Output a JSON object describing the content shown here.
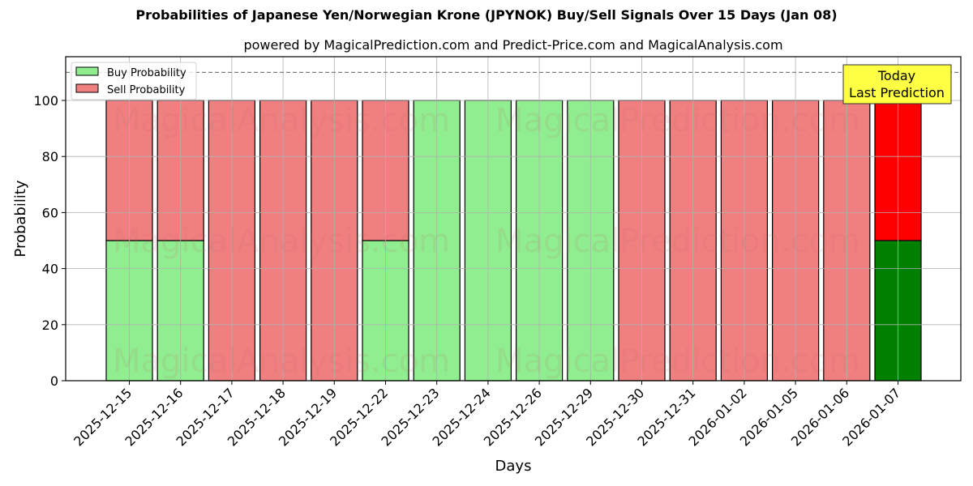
{
  "title": "Probabilities of Japanese Yen/Norwegian Krone (JPYNOK) Buy/Sell Signals Over 15 Days (Jan 08)",
  "subtitle": "powered by MagicalPrediction.com and Predict-Price.com and MagicalAnalysis.com",
  "colors": {
    "buy": "#90ee90",
    "sell": "#f08080",
    "buy_today": "#008000",
    "sell_today": "#ff0000",
    "annotation_bg": "#ffff44",
    "grid": "#b0b0b0",
    "reference_line": "#808080"
  },
  "annotation": {
    "line1": "Today",
    "line2": "Last Prediction"
  },
  "watermarks": [
    "MagicalAnalysis.com",
    "MagicalPrediction.com"
  ],
  "chart_data": {
    "type": "bar",
    "stacked": true,
    "title": "Probabilities of Japanese Yen/Norwegian Krone (JPYNOK) Buy/Sell Signals Over 15 Days (Jan 08)",
    "subtitle": "powered by MagicalPrediction.com and Predict-Price.com and MagicalAnalysis.com",
    "xlabel": "Days",
    "ylabel": "Probability",
    "ylim": [
      0,
      115
    ],
    "yticks": [
      0,
      20,
      40,
      60,
      80,
      100
    ],
    "grid": true,
    "legend_position": "upper left",
    "reference_line_y": 110,
    "categories": [
      "2025-12-15",
      "2025-12-16",
      "2025-12-17",
      "2025-12-18",
      "2025-12-19",
      "2025-12-22",
      "2025-12-23",
      "2025-12-24",
      "2025-12-26",
      "2025-12-29",
      "2025-12-30",
      "2025-12-31",
      "2026-01-02",
      "2026-01-05",
      "2026-01-06",
      "2026-01-07"
    ],
    "series": [
      {
        "name": "Buy Probability",
        "values": [
          50,
          50,
          0,
          0,
          0,
          50,
          100,
          100,
          100,
          100,
          0,
          0,
          0,
          0,
          0,
          50
        ]
      },
      {
        "name": "Sell Probability",
        "values": [
          50,
          50,
          100,
          100,
          100,
          50,
          0,
          0,
          0,
          0,
          100,
          100,
          100,
          100,
          100,
          50
        ]
      }
    ],
    "highlight": {
      "index": 15,
      "label": "Today\nLast Prediction"
    }
  }
}
